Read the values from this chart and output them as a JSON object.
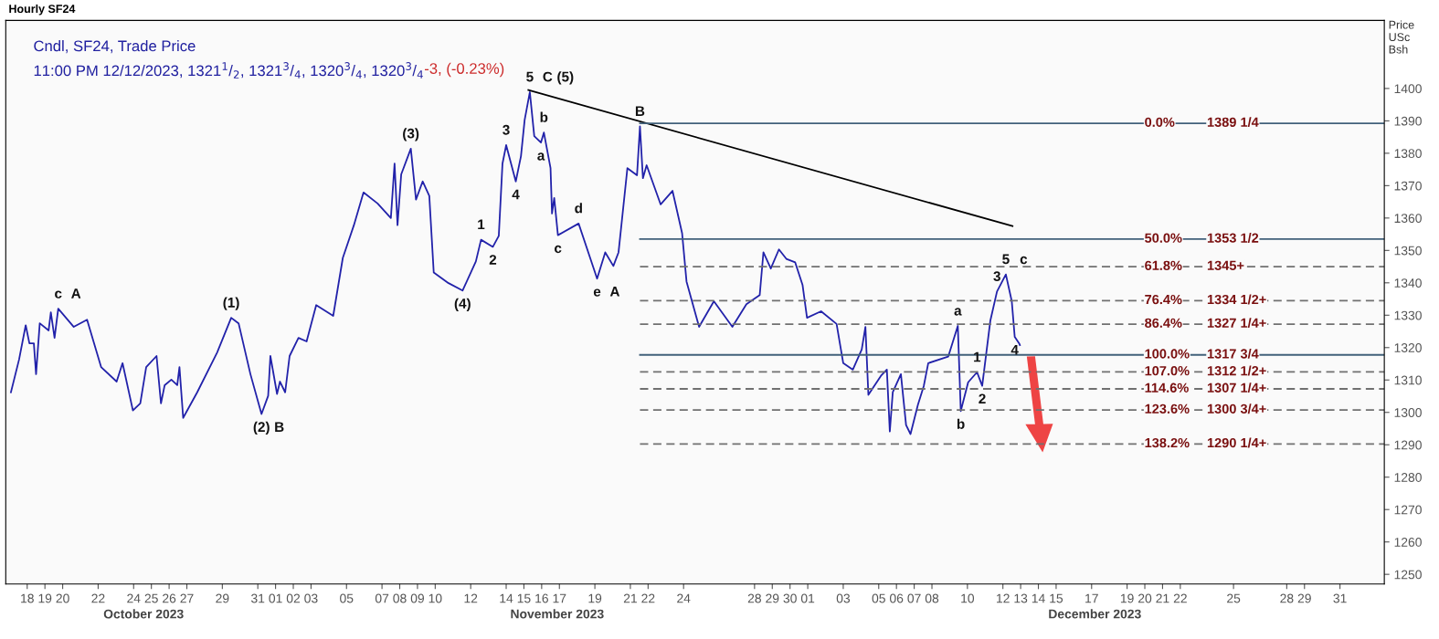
{
  "chart_data": {
    "type": "line",
    "title": "Hourly SF24",
    "subtitle": "Cndl, SF24, Trade Price",
    "ylabel": "Price\nUSc\nBsh",
    "xlim": [
      "2023-10-16T19:00",
      "2024-01-02T12:00"
    ],
    "ylim": [
      1247,
      1421
    ],
    "yticks": [
      1250,
      1260,
      1270,
      1280,
      1290,
      1300,
      1310,
      1320,
      1330,
      1340,
      1350,
      1360,
      1370,
      1380,
      1390,
      1400
    ],
    "xticks": [
      {
        "value": "2023-10-18",
        "label": "18"
      },
      {
        "value": "2023-10-19",
        "label": "19"
      },
      {
        "value": "2023-10-20",
        "label": "20"
      },
      {
        "value": "2023-10-22",
        "label": "22"
      },
      {
        "value": "2023-10-24",
        "label": "24"
      },
      {
        "value": "2023-10-25",
        "label": "25"
      },
      {
        "value": "2023-10-26",
        "label": "26"
      },
      {
        "value": "2023-10-27",
        "label": "27"
      },
      {
        "value": "2023-10-29",
        "label": "29"
      },
      {
        "value": "2023-10-31",
        "label": "31"
      },
      {
        "value": "2023-11-01",
        "label": "01"
      },
      {
        "value": "2023-11-02",
        "label": "02"
      },
      {
        "value": "2023-11-03",
        "label": "03"
      },
      {
        "value": "2023-11-05",
        "label": "05"
      },
      {
        "value": "2023-11-07",
        "label": "07"
      },
      {
        "value": "2023-11-08",
        "label": "08"
      },
      {
        "value": "2023-11-09",
        "label": "09"
      },
      {
        "value": "2023-11-10",
        "label": "10"
      },
      {
        "value": "2023-11-12",
        "label": "12"
      },
      {
        "value": "2023-11-14",
        "label": "14"
      },
      {
        "value": "2023-11-15",
        "label": "15"
      },
      {
        "value": "2023-11-16",
        "label": "16"
      },
      {
        "value": "2023-11-17",
        "label": "17"
      },
      {
        "value": "2023-11-19",
        "label": "19"
      },
      {
        "value": "2023-11-21",
        "label": "21"
      },
      {
        "value": "2023-11-22",
        "label": "22"
      },
      {
        "value": "2023-11-24",
        "label": "24"
      },
      {
        "value": "2023-11-28",
        "label": "28"
      },
      {
        "value": "2023-11-29",
        "label": "29"
      },
      {
        "value": "2023-11-30",
        "label": "30"
      },
      {
        "value": "2023-12-01",
        "label": "01"
      },
      {
        "value": "2023-12-03",
        "label": "03"
      },
      {
        "value": "2023-12-05",
        "label": "05"
      },
      {
        "value": "2023-12-06",
        "label": "06"
      },
      {
        "value": "2023-12-07",
        "label": "07"
      },
      {
        "value": "2023-12-08",
        "label": "08"
      },
      {
        "value": "2023-12-10",
        "label": "10"
      },
      {
        "value": "2023-12-12",
        "label": "12"
      },
      {
        "value": "2023-12-13",
        "label": "13"
      },
      {
        "value": "2023-12-14",
        "label": "14"
      },
      {
        "value": "2023-12-15",
        "label": "15"
      },
      {
        "value": "2023-12-17",
        "label": "17"
      },
      {
        "value": "2023-12-19",
        "label": "19"
      },
      {
        "value": "2023-12-20",
        "label": "20"
      },
      {
        "value": "2023-12-21",
        "label": "21"
      },
      {
        "value": "2023-12-22",
        "label": "22"
      },
      {
        "value": "2023-12-25",
        "label": "25"
      },
      {
        "value": "2023-12-28",
        "label": "28"
      },
      {
        "value": "2023-12-29",
        "label": "29"
      },
      {
        "value": "2023-12-31",
        "label": "31"
      }
    ],
    "grid": false,
    "legend": false,
    "marker": "none",
    "line_style": "solid",
    "series": [
      {
        "color": "#2222aa",
        "x": [
          "2023-10-17T02:00",
          "2023-10-17T13:00",
          "2023-10-17T22:00",
          "2023-10-18T03:00",
          "2023-10-18T09:00",
          "2023-10-18T12:00",
          "2023-10-18T17:00",
          "2023-10-19T05:00",
          "2023-10-19T08:00",
          "2023-10-19T13:00",
          "2023-10-19T18:00",
          "2023-10-20T15:00",
          "2023-10-21T09:00",
          "2023-10-22T04:00",
          "2023-10-23T01:00",
          "2023-10-23T09:00",
          "2023-10-23T23:00",
          "2023-10-24T09:00",
          "2023-10-24T17:00",
          "2023-10-25T07:00",
          "2023-10-25T13:00",
          "2023-10-25T18:00",
          "2023-10-26T03:00",
          "2023-10-26T11:00",
          "2023-10-26T14:00",
          "2023-10-26T19:00",
          "2023-10-27T14:00",
          "2023-10-28T17:00",
          "2023-10-29T12:00",
          "2023-10-29T22:00",
          "2023-10-30T14:00",
          "2023-10-31T05:00",
          "2023-10-31T14:00",
          "2023-10-31T17:00",
          "2023-11-01T02:00",
          "2023-11-01T06:00",
          "2023-11-01T13:00",
          "2023-11-01T19:00",
          "2023-11-02T07:00",
          "2023-11-02T18:00",
          "2023-11-03T07:00",
          "2023-11-04T06:00",
          "2023-11-04T19:00",
          "2023-11-05T10:00",
          "2023-11-05T23:00",
          "2023-11-06T18:00",
          "2023-11-07T12:00",
          "2023-11-07T17:00",
          "2023-11-07T21:00",
          "2023-11-08T02:00",
          "2023-11-08T15:00",
          "2023-11-08T22:00",
          "2023-11-09T07:00",
          "2023-11-09T16:00",
          "2023-11-09T22:00",
          "2023-11-10T18:00",
          "2023-11-11T13:00",
          "2023-11-12T07:00",
          "2023-11-12T14:00",
          "2023-11-13T06:00",
          "2023-11-13T14:00",
          "2023-11-13T19:00",
          "2023-11-14T00:00",
          "2023-11-14T13:00",
          "2023-11-14T20:00",
          "2023-11-15T01:00",
          "2023-11-15T08:00",
          "2023-11-15T14:00",
          "2023-11-15T23:00",
          "2023-11-16T03:00",
          "2023-11-16T12:00",
          "2023-11-16T14:00",
          "2023-11-16T17:00",
          "2023-11-16T22:00",
          "2023-11-18T02:00",
          "2023-11-19T03:00",
          "2023-11-19T14:00",
          "2023-11-20T01:00",
          "2023-11-20T08:00",
          "2023-11-20T20:00",
          "2023-11-21T09:00",
          "2023-11-21T13:00",
          "2023-11-21T17:00",
          "2023-11-21T22:00",
          "2023-11-22T17:00",
          "2023-11-23T09:00",
          "2023-11-23T22:00",
          "2023-11-24T04:00",
          "2023-11-24T21:00",
          "2023-11-25T17:00",
          "2023-11-26T18:00",
          "2023-11-27T13:00",
          "2023-11-28T07:00",
          "2023-11-28T12:00",
          "2023-11-28T22:00",
          "2023-11-29T09:00",
          "2023-11-29T19:00",
          "2023-11-30T07:00",
          "2023-11-30T17:00",
          "2023-11-30T23:00",
          "2023-12-01T18:00",
          "2023-12-02T15:00",
          "2023-12-03T00:00",
          "2023-12-03T13:00",
          "2023-12-04T01:00",
          "2023-12-04T06:00",
          "2023-12-04T10:00",
          "2023-12-05T03:00",
          "2023-12-05T11:00",
          "2023-12-05T15:00",
          "2023-12-05T19:00",
          "2023-12-06T06:00",
          "2023-12-06T13:00",
          "2023-12-06T19:00",
          "2023-12-07T05:00",
          "2023-12-07T13:00",
          "2023-12-07T19:00",
          "2023-12-08T22:00",
          "2023-12-09T11:00",
          "2023-12-09T15:00",
          "2023-12-10T01:00",
          "2023-12-10T13:00",
          "2023-12-10T20:00",
          "2023-12-11T07:00",
          "2023-12-11T16:00",
          "2023-12-12T04:00",
          "2023-12-12T12:00",
          "2023-12-12T16:00",
          "2023-12-12T22:00",
          "2023-12-12T23:00"
        ],
        "values": [
          1306.2,
          1316.3,
          1326.9,
          1321.3,
          1321.3,
          1311.8,
          1327.5,
          1325.3,
          1330.9,
          1323.0,
          1332.0,
          1326.4,
          1328.6,
          1314.0,
          1309.5,
          1315.2,
          1300.6,
          1302.8,
          1314.0,
          1317.4,
          1302.8,
          1308.4,
          1310.1,
          1308.4,
          1314.0,
          1298.3,
          1306.2,
          1318.5,
          1329.2,
          1327.5,
          1311.8,
          1299.5,
          1305.1,
          1317.4,
          1305.7,
          1309.5,
          1306.2,
          1317.4,
          1323.0,
          1321.9,
          1333.1,
          1329.8,
          1347.7,
          1357.8,
          1367.9,
          1364.5,
          1360.0,
          1376.8,
          1357.8,
          1373.5,
          1381.4,
          1365.7,
          1371.3,
          1366.8,
          1343.2,
          1339.9,
          1337.6,
          1346.6,
          1353.3,
          1351.1,
          1354.5,
          1376.8,
          1382.5,
          1371.3,
          1379.1,
          1390.3,
          1398.9,
          1385.3,
          1383.3,
          1386.4,
          1375.4,
          1361.4,
          1366.2,
          1354.7,
          1358.3,
          1341.3,
          1349.4,
          1345.2,
          1349.4,
          1375.4,
          1373.2,
          1388.3,
          1372.3,
          1376.3,
          1364.2,
          1368.4,
          1355.3,
          1340.4,
          1326.4,
          1334.3,
          1326.4,
          1333.4,
          1336.2,
          1349.4,
          1344.4,
          1350.3,
          1347.4,
          1346.3,
          1339.3,
          1329.2,
          1331.2,
          1327.3,
          1315.2,
          1313.2,
          1319.4,
          1326.4,
          1305.4,
          1311.3,
          1313.2,
          1294.1,
          1306.2,
          1311.8,
          1296.1,
          1293.3,
          1302.3,
          1308.2,
          1315.2,
          1317.2,
          1326.7,
          1300.4,
          1309.3,
          1312.4,
          1308.2,
          1328.3,
          1337.3,
          1342.6,
          1334.3,
          1323.3,
          1321.3,
          1320.75
        ]
      },
      {
        "color": "#000000",
        "x": [
          "2023-11-15T06:00",
          "2023-12-12T13:00"
        ],
        "values": [
          1399.5,
          1357.5
        ]
      },
      {
        "name": "0.0%",
        "color": "#41607a",
        "x": [
          "2023-11-21T13:00",
          "2024-01-02T12:00"
        ],
        "values": [
          1389.25,
          1389.25
        ]
      },
      {
        "name": "50.0%",
        "color": "#41607a",
        "x": [
          "2023-11-21T13:00",
          "2024-01-02T12:00"
        ],
        "values": [
          1353.5,
          1353.5
        ]
      },
      {
        "name": "61.8%",
        "color": "#707070",
        "line_style": "dashed",
        "x": [
          "2023-11-21T13:00",
          "2024-01-02T12:00"
        ],
        "values": [
          1345,
          1345
        ]
      },
      {
        "name": "76.4%",
        "color": "#707070",
        "line_style": "dashed",
        "x": [
          "2023-11-21T13:00",
          "2024-01-02T12:00"
        ],
        "values": [
          1334.5,
          1334.5
        ]
      },
      {
        "name": "86.4%",
        "color": "#707070",
        "line_style": "dashed",
        "x": [
          "2023-11-21T13:00",
          "2024-01-02T12:00"
        ],
        "values": [
          1327.25,
          1327.25
        ]
      },
      {
        "name": "100.0%",
        "color": "#41607a",
        "x": [
          "2023-11-21T13:00",
          "2024-01-02T12:00"
        ],
        "values": [
          1317.75,
          1317.75
        ]
      },
      {
        "name": "107.0%",
        "color": "#707070",
        "line_style": "dashed",
        "x": [
          "2023-11-21T13:00",
          "2024-01-02T12:00"
        ],
        "values": [
          1312.5,
          1312.5
        ]
      },
      {
        "name": "114.6%",
        "color": "#707070",
        "line_style": "dashed",
        "x": [
          "2023-11-21T13:00",
          "2024-01-02T12:00"
        ],
        "values": [
          1307.25,
          1307.25
        ]
      },
      {
        "name": "123.6%",
        "color": "#707070",
        "line_style": "dashed",
        "x": [
          "2023-11-21T13:00",
          "2024-01-02T12:00"
        ],
        "values": [
          1300.75,
          1300.75
        ]
      },
      {
        "name": "138.2%",
        "color": "#707070",
        "line_style": "dashed",
        "x": [
          "2023-11-21T13:00",
          "2024-01-02T12:00"
        ],
        "values": [
          1290.25,
          1290.25
        ]
      }
    ],
    "annotations": [
      "October 2023",
      "November 2023",
      "December 2023",
      "11:00 PM 12/12/2023, 1321$^{1}$/$_{2}$, 1321$^{3}$/$_{4}$, 1320$^{3}$/$_{4}$, 1320$^{3}$/$_{4}$",
      "-3, (-0.23%)",
      {
        "text": "1389 1/4",
        "x": "2023-12-23T12:00",
        "y": 1389.25
      },
      {
        "text": "1353 1/2",
        "x": "2023-12-23T12:00",
        "y": 1353.5
      },
      {
        "text": "1345+",
        "x": "2023-12-23T12:00",
        "y": 1345
      },
      {
        "text": "1334 1/2+",
        "x": "2023-12-23T12:00",
        "y": 1334.5
      },
      {
        "text": "1327 1/4+",
        "x": "2023-12-23T12:00",
        "y": 1327.25
      },
      {
        "text": "1317 3/4",
        "x": "2023-12-23T12:00",
        "y": 1317.75
      },
      {
        "text": "1312 1/2+",
        "x": "2023-12-23T12:00",
        "y": 1312.5
      },
      {
        "text": "1307 1/4+",
        "x": "2023-12-23T12:00",
        "y": 1307.25
      },
      {
        "text": "1300 3/4+",
        "x": "2023-12-23T12:00",
        "y": 1300.75
      },
      {
        "text": "1290 1/4+",
        "x": "2023-12-23T12:00",
        "y": 1290.25
      },
      {
        "text": "c",
        "x": "2023-10-19T18:00",
        "y": 1332.0
      },
      {
        "text": "A",
        "x": "2023-10-19T18:00",
        "y": 1332.0
      },
      {
        "text": "(1)",
        "x": "2023-10-29T12:00",
        "y": 1329.2
      },
      {
        "text": "(2)",
        "x": "2023-10-31T05:00",
        "y": 1299.5
      },
      {
        "text": "B",
        "x": "2023-10-31T05:00",
        "y": 1299.5
      },
      {
        "text": "(3)",
        "x": "2023-11-08T15:00",
        "y": 1381.4
      },
      {
        "text": "(4)",
        "x": "2023-11-11T13:00",
        "y": 1337.6
      },
      {
        "text": "1",
        "x": "2023-11-12T14:00",
        "y": 1353.3
      },
      {
        "text": "2",
        "x": "2023-11-13T06:00",
        "y": 1351.1
      },
      {
        "text": "3",
        "x": "2023-11-14T00:00",
        "y": 1382.5
      },
      {
        "text": "4",
        "x": "2023-11-14T13:00",
        "y": 1371.3
      },
      {
        "text": "5",
        "x": "2023-11-15T08:00",
        "y": 1398.9
      },
      {
        "text": "C",
        "x": "2023-11-15T08:00",
        "y": 1398.9
      },
      {
        "text": "(5)",
        "x": "2023-11-15T08:00",
        "y": 1398.9
      },
      {
        "text": "a",
        "x": "2023-11-15T23:00",
        "y": 1383.3
      },
      {
        "text": "b",
        "x": "2023-11-16T03:00",
        "y": 1386.4
      },
      {
        "text": "c",
        "x": "2023-11-16T22:00",
        "y": 1354.7
      },
      {
        "text": "d",
        "x": "2023-11-18T02:00",
        "y": 1358.3
      },
      {
        "text": "e",
        "x": "2023-11-19T03:00",
        "y": 1341.3
      },
      {
        "text": "A",
        "x": "2023-11-19T03:00",
        "y": 1341.3
      },
      {
        "text": "B",
        "x": "2023-11-21T13:00",
        "y": 1388.3
      },
      {
        "text": "a",
        "x": "2023-12-09T11:00",
        "y": 1326.7
      },
      {
        "text": "b",
        "x": "2023-12-09T15:00",
        "y": 1300.4
      },
      {
        "text": "1",
        "x": "2023-12-10T13:00",
        "y": 1312.4
      },
      {
        "text": "2",
        "x": "2023-12-10T20:00",
        "y": 1308.2
      },
      {
        "text": "3",
        "x": "2023-12-11T16:00",
        "y": 1337.3
      },
      {
        "text": "4",
        "x": "2023-12-12T16:00",
        "y": 1323.3
      },
      {
        "text": "5",
        "x": "2023-12-12T04:00",
        "y": 1342.6
      },
      {
        "text": "c",
        "x": "2023-12-12T04:00",
        "y": 1342.6
      }
    ]
  }
}
